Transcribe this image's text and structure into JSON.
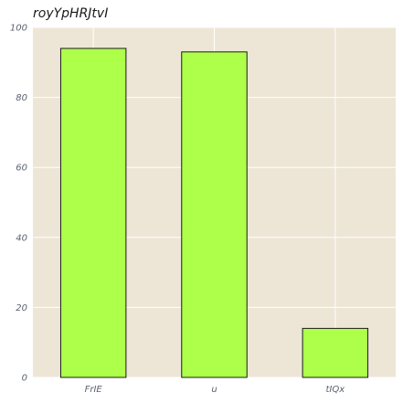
{
  "chart_data": {
    "type": "bar",
    "title": "royYpHRJtvI",
    "xlabel": "",
    "ylabel": "",
    "categories": [
      "FrIE",
      "u",
      "tIQx"
    ],
    "values": [
      94,
      93,
      14
    ],
    "ylim": [
      0,
      100
    ],
    "yticks": [
      0,
      20,
      40,
      60,
      80,
      100
    ],
    "grid": true,
    "colors": {
      "bar_fill": "#adff4a",
      "bar_edge": "#1a1a1a",
      "plot_background": "#ede6d6",
      "grid": "#ffffff"
    }
  }
}
